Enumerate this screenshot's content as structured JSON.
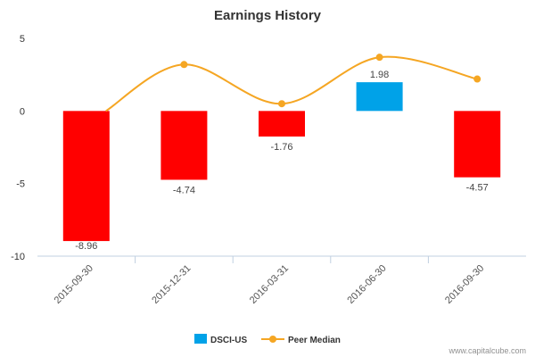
{
  "chart_data": {
    "type": "bar",
    "title": "Earnings History",
    "categories": [
      "2015-09-30",
      "2015-12-31",
      "2016-03-31",
      "2016-06-30",
      "2016-09-30"
    ],
    "series": [
      {
        "name": "DSCI-US",
        "type": "bar",
        "values": [
          -8.96,
          -4.74,
          -1.76,
          1.98,
          -4.57
        ],
        "data_labels": [
          "-8.96",
          "-4.74",
          "-1.76",
          "1.98",
          "-4.57"
        ],
        "color_positive": "#00a2e8",
        "color_negative": "#ff0000"
      },
      {
        "name": "Peer Median",
        "type": "line",
        "values": [
          null,
          3.2,
          0.5,
          3.7,
          2.2
        ],
        "color": "#f5a623"
      }
    ],
    "ylim": [
      -10,
      5
    ],
    "yticks": [
      "5",
      "0",
      "-5",
      "-10"
    ],
    "ytick_values": [
      5,
      0,
      -5,
      -10
    ],
    "grid": false,
    "legend_position": "bottom-center"
  },
  "credit": "www.capitalcube.com"
}
